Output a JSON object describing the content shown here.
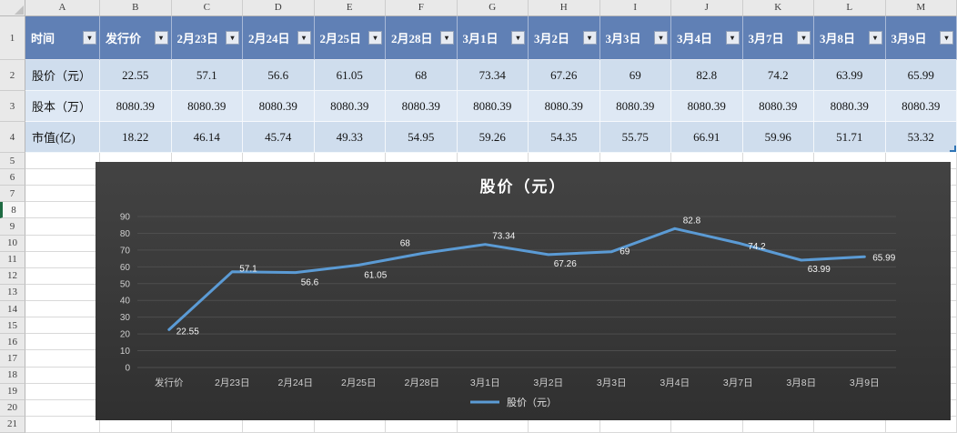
{
  "sheet": {
    "column_letters": [
      "A",
      "B",
      "C",
      "D",
      "E",
      "F",
      "G",
      "H",
      "I",
      "J",
      "K",
      "L",
      "M"
    ],
    "row_numbers": [
      1,
      2,
      3,
      4,
      5,
      6,
      7,
      8,
      9,
      10,
      11,
      12,
      13,
      14,
      15,
      16,
      17,
      18,
      19,
      20,
      21
    ],
    "active_row": 8,
    "filter_icon": "▾",
    "header_row": [
      "时间",
      "发行价",
      "2月23日",
      "2月24日",
      "2月25日",
      "2月28日",
      "3月1日",
      "3月2日",
      "3月3日",
      "3月4日",
      "3月7日",
      "3月8日",
      "3月9日"
    ],
    "rows": [
      {
        "label": "股价（元）",
        "values": [
          "22.55",
          "57.1",
          "56.6",
          "61.05",
          "68",
          "73.34",
          "67.26",
          "69",
          "82.8",
          "74.2",
          "63.99",
          "65.99"
        ]
      },
      {
        "label": "股本（万）",
        "values": [
          "8080.39",
          "8080.39",
          "8080.39",
          "8080.39",
          "8080.39",
          "8080.39",
          "8080.39",
          "8080.39",
          "8080.39",
          "8080.39",
          "8080.39",
          "8080.39"
        ]
      },
      {
        "label": "市值(亿)",
        "values": [
          "18.22",
          "46.14",
          "45.74",
          "49.33",
          "54.95",
          "59.26",
          "54.35",
          "55.75",
          "66.91",
          "59.96",
          "51.71",
          "53.32"
        ]
      }
    ]
  },
  "chart_data": {
    "type": "line",
    "title": "股价（元）",
    "categories": [
      "发行价",
      "2月23日",
      "2月24日",
      "2月25日",
      "2月28日",
      "3月1日",
      "3月2日",
      "3月3日",
      "3月4日",
      "3月7日",
      "3月8日",
      "3月9日"
    ],
    "series": [
      {
        "name": "股价（元）",
        "values": [
          22.55,
          57.1,
          56.6,
          61.05,
          68,
          73.34,
          67.26,
          69,
          82.8,
          74.2,
          63.99,
          65.99
        ],
        "data_labels": [
          "22.55",
          "57.1",
          "56.6",
          "61.05",
          "68",
          "73.34",
          "67.26",
          "69",
          "82.8",
          "74.2",
          "63.99",
          "65.99"
        ]
      }
    ],
    "ylim": [
      0,
      90
    ],
    "ytick_step": 10,
    "yticks": [
      0,
      10,
      20,
      30,
      40,
      50,
      60,
      70,
      80,
      90
    ],
    "grid": true,
    "legend_position": "bottom",
    "colors": {
      "line": "#5b9bd5",
      "background_top": "#434343",
      "background_bottom": "#303030",
      "gridline": "#4e4e4e",
      "tick_text": "#cfcfcf",
      "data_label_text": "#f5f5f5",
      "title_text": "#ffffff",
      "legend_text": "#e3e3e3"
    }
  },
  "colors": {
    "table_header_bg": "#6080b5",
    "band_a": "#cfdded",
    "band_b": "#dee8f4",
    "active_row_accent": "#1f6b43",
    "table_end_handle": "#2e74b5"
  }
}
